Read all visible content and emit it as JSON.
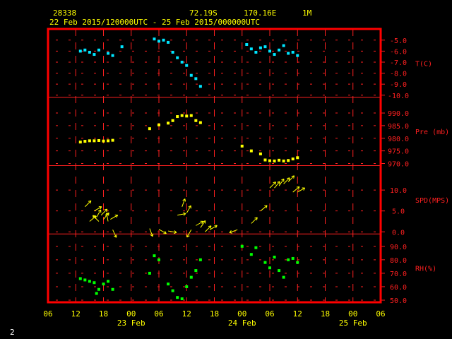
{
  "header": {
    "station_id": "28338",
    "latitude": "72.19S",
    "longitude": "170.16E",
    "level": "1M",
    "date_range": "22 Feb 2015/120000UTC - 25 Feb 2015/000000UTC"
  },
  "footer": {
    "page_number": "2"
  },
  "colors": {
    "frame": "#ff0000",
    "grid": "#ff2020",
    "text": "#ffff00",
    "temperature": "#00e5ff",
    "pressure": "#ffff00",
    "wind": "#ffff00",
    "humidity": "#00ff00"
  },
  "chart_data": {
    "type": "scatter",
    "x_axis": {
      "tick_labels": [
        "06",
        "12",
        "18",
        "00",
        "06",
        "12",
        "18",
        "00",
        "06",
        "12",
        "18",
        "00",
        "06"
      ],
      "day_labels": [
        "23 Feb",
        "24 Feb",
        "25 Feb"
      ],
      "range_hours": [
        0,
        72
      ]
    },
    "panels": [
      {
        "key": "temperature",
        "label": "T(C)",
        "ylim": [
          -10.0,
          -4.5
        ],
        "ticks": [
          "-5.0",
          "-6.0",
          "-7.0",
          "-8.0",
          "-9.0",
          "-10.0"
        ],
        "tick_values": [
          -5,
          -6,
          -7,
          -8,
          -9,
          -10
        ],
        "marker": "square",
        "points": [
          {
            "x": 7,
            "y": -6.0
          },
          {
            "x": 8,
            "y": -5.9
          },
          {
            "x": 9,
            "y": -6.1
          },
          {
            "x": 10,
            "y": -6.3
          },
          {
            "x": 11,
            "y": -5.9
          },
          {
            "x": 13,
            "y": -6.2
          },
          {
            "x": 14,
            "y": -6.4
          },
          {
            "x": 16,
            "y": -5.6
          },
          {
            "x": 23,
            "y": -4.9
          },
          {
            "x": 24,
            "y": -5.1
          },
          {
            "x": 25,
            "y": -5.0
          },
          {
            "x": 26,
            "y": -5.2
          },
          {
            "x": 27,
            "y": -6.1
          },
          {
            "x": 28,
            "y": -6.6
          },
          {
            "x": 29,
            "y": -7.0
          },
          {
            "x": 30,
            "y": -7.3
          },
          {
            "x": 31,
            "y": -8.2
          },
          {
            "x": 32,
            "y": -8.5
          },
          {
            "x": 33,
            "y": -9.2
          },
          {
            "x": 43,
            "y": -5.4
          },
          {
            "x": 44,
            "y": -5.8
          },
          {
            "x": 45,
            "y": -6.1
          },
          {
            "x": 46,
            "y": -5.7
          },
          {
            "x": 47,
            "y": -5.6
          },
          {
            "x": 48,
            "y": -6.0
          },
          {
            "x": 49,
            "y": -6.3
          },
          {
            "x": 50,
            "y": -5.9
          },
          {
            "x": 51,
            "y": -5.5
          },
          {
            "x": 52,
            "y": -6.2
          },
          {
            "x": 53,
            "y": -6.1
          },
          {
            "x": 54,
            "y": -6.4
          }
        ]
      },
      {
        "key": "pressure",
        "label": "Pre (mb)",
        "ylim": [
          970.0,
          994.0
        ],
        "ticks": [
          "990.0",
          "985.0",
          "980.0",
          "975.0",
          "970.0"
        ],
        "tick_values": [
          990,
          985,
          980,
          975,
          970
        ],
        "marker": "square",
        "points": [
          {
            "x": 7,
            "y": 978.5
          },
          {
            "x": 8,
            "y": 978.8
          },
          {
            "x": 9,
            "y": 979.0
          },
          {
            "x": 10,
            "y": 979.0
          },
          {
            "x": 11,
            "y": 979.1
          },
          {
            "x": 12,
            "y": 978.9
          },
          {
            "x": 13,
            "y": 979.0
          },
          {
            "x": 14,
            "y": 979.2
          },
          {
            "x": 22,
            "y": 983.8
          },
          {
            "x": 24,
            "y": 985.3
          },
          {
            "x": 26,
            "y": 986.0
          },
          {
            "x": 27,
            "y": 987.0
          },
          {
            "x": 28,
            "y": 988.6
          },
          {
            "x": 29,
            "y": 989.0
          },
          {
            "x": 30,
            "y": 988.8
          },
          {
            "x": 31,
            "y": 989.0
          },
          {
            "x": 32,
            "y": 987.0
          },
          {
            "x": 33,
            "y": 986.2
          },
          {
            "x": 42,
            "y": 976.9
          },
          {
            "x": 44,
            "y": 975.0
          },
          {
            "x": 46,
            "y": 973.8
          },
          {
            "x": 47,
            "y": 971.4
          },
          {
            "x": 48,
            "y": 971.1
          },
          {
            "x": 49,
            "y": 971.0
          },
          {
            "x": 50,
            "y": 971.3
          },
          {
            "x": 51,
            "y": 971.0
          },
          {
            "x": 52,
            "y": 971.2
          },
          {
            "x": 53,
            "y": 971.8
          },
          {
            "x": 54,
            "y": 972.3
          }
        ]
      },
      {
        "key": "wind",
        "label": "SPD(MPS)",
        "ylim": [
          0.0,
          14.5
        ],
        "ticks": [
          "10.0",
          "5.0",
          "0.0"
        ],
        "tick_values": [
          10,
          5,
          0
        ],
        "marker": "arrow",
        "points": [
          {
            "x": 8,
            "y": 6.0,
            "dir": 45
          },
          {
            "x": 9,
            "y": 2.5,
            "dir": 50
          },
          {
            "x": 10,
            "y": 5.0,
            "dir": 60
          },
          {
            "x": 10.5,
            "y": 3.5,
            "dir": 30
          },
          {
            "x": 11,
            "y": 2.5,
            "dir": 315
          },
          {
            "x": 11.5,
            "y": 4.0,
            "dir": 45
          },
          {
            "x": 12,
            "y": 3.0,
            "dir": 40
          },
          {
            "x": 13,
            "y": 2.5,
            "dir": 350
          },
          {
            "x": 13.5,
            "y": 3.0,
            "dir": 60
          },
          {
            "x": 14,
            "y": 0.5,
            "dir": 155
          },
          {
            "x": 22,
            "y": 0.8,
            "dir": 160
          },
          {
            "x": 24,
            "y": 0.6,
            "dir": 120
          },
          {
            "x": 26,
            "y": 0.2,
            "dir": 100
          },
          {
            "x": 28,
            "y": 4.0,
            "dir": 80
          },
          {
            "x": 29,
            "y": 6.0,
            "dir": 20
          },
          {
            "x": 30,
            "y": 4.5,
            "dir": 30
          },
          {
            "x": 31,
            "y": 0.5,
            "dir": 210
          },
          {
            "x": 32,
            "y": 1.5,
            "dir": 60
          },
          {
            "x": 33,
            "y": 1.0,
            "dir": 35
          },
          {
            "x": 34,
            "y": 0.0,
            "dir": 45
          },
          {
            "x": 35,
            "y": 0.5,
            "dir": 60
          },
          {
            "x": 41,
            "y": 0.5,
            "dir": 250
          },
          {
            "x": 44,
            "y": 2.0,
            "dir": 45
          },
          {
            "x": 46,
            "y": 5.0,
            "dir": 50
          },
          {
            "x": 48,
            "y": 10.5,
            "dir": 45
          },
          {
            "x": 49,
            "y": 10.5,
            "dir": 40
          },
          {
            "x": 50,
            "y": 11.0,
            "dir": 35
          },
          {
            "x": 51,
            "y": 11.5,
            "dir": 45
          },
          {
            "x": 52,
            "y": 12.0,
            "dir": 45
          },
          {
            "x": 53,
            "y": 9.5,
            "dir": 50
          },
          {
            "x": 54,
            "y": 9.5,
            "dir": 60
          }
        ]
      },
      {
        "key": "humidity",
        "label": "RH(%)",
        "ylim": [
          50.0,
          95.0
        ],
        "ticks": [
          "90.0",
          "80.0",
          "70.0",
          "60.0",
          "50.0"
        ],
        "tick_values": [
          90,
          80,
          70,
          60,
          50
        ],
        "marker": "square",
        "points": [
          {
            "x": 7,
            "y": 66
          },
          {
            "x": 8,
            "y": 65
          },
          {
            "x": 9,
            "y": 64
          },
          {
            "x": 10,
            "y": 63
          },
          {
            "x": 10.5,
            "y": 55
          },
          {
            "x": 11,
            "y": 58
          },
          {
            "x": 12,
            "y": 62
          },
          {
            "x": 13,
            "y": 64
          },
          {
            "x": 14,
            "y": 58
          },
          {
            "x": 22,
            "y": 70
          },
          {
            "x": 23,
            "y": 83
          },
          {
            "x": 24,
            "y": 80
          },
          {
            "x": 26,
            "y": 62
          },
          {
            "x": 27,
            "y": 57
          },
          {
            "x": 28,
            "y": 52
          },
          {
            "x": 29,
            "y": 51
          },
          {
            "x": 30,
            "y": 60
          },
          {
            "x": 31,
            "y": 67
          },
          {
            "x": 32,
            "y": 72
          },
          {
            "x": 33,
            "y": 80
          },
          {
            "x": 42,
            "y": 90
          },
          {
            "x": 44,
            "y": 84
          },
          {
            "x": 45,
            "y": 89
          },
          {
            "x": 47,
            "y": 78
          },
          {
            "x": 48,
            "y": 74
          },
          {
            "x": 49,
            "y": 82
          },
          {
            "x": 50,
            "y": 72
          },
          {
            "x": 51,
            "y": 67
          },
          {
            "x": 52,
            "y": 80
          },
          {
            "x": 53,
            "y": 81
          },
          {
            "x": 54,
            "y": 78
          }
        ]
      }
    ]
  }
}
